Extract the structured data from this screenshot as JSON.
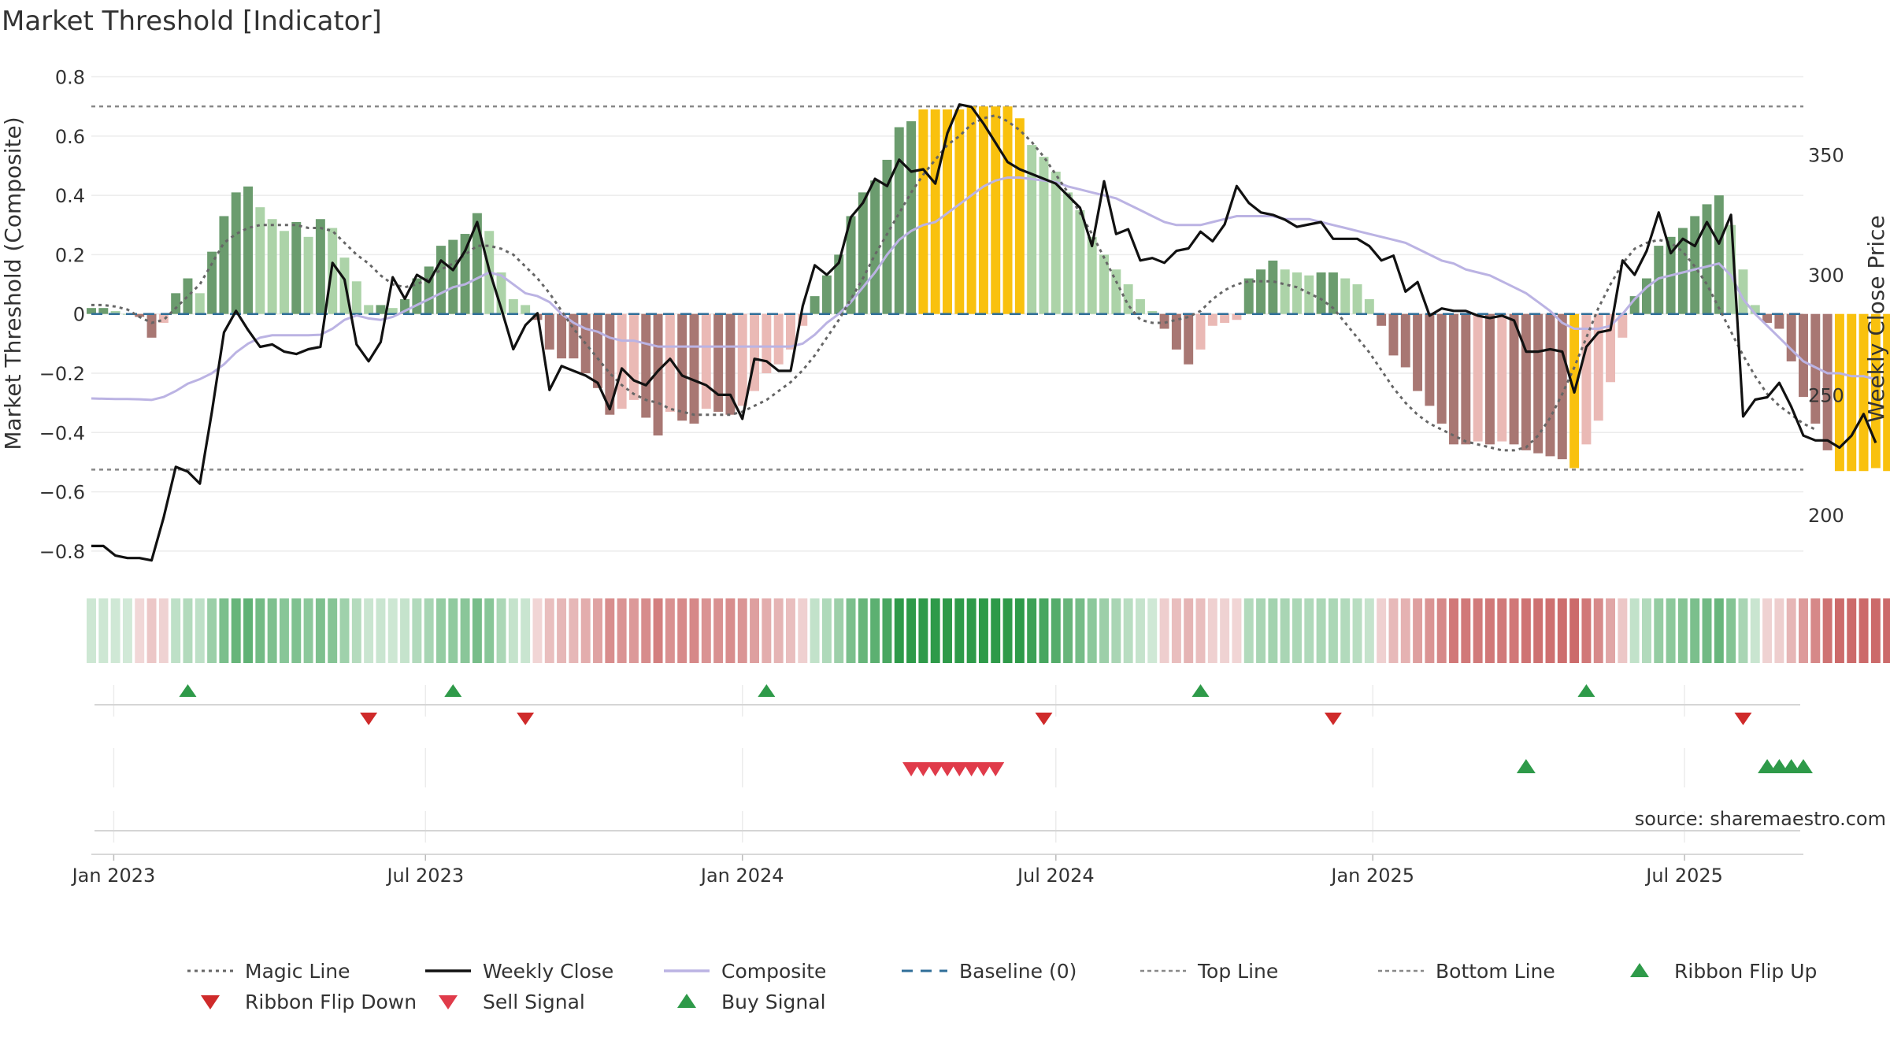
{
  "chart_data": {
    "type": "bar",
    "title": "Market Threshold [Indicator]",
    "ylabel": "Market Threshold (Composite)",
    "y2label": "Weekly Close Price",
    "ylim": [
      -0.88,
      0.82
    ],
    "y2lim": [
      175,
      385
    ],
    "y_ticks": [
      0.8,
      0.6,
      0.4,
      0.2,
      0,
      -0.2,
      -0.4,
      -0.6,
      -0.8
    ],
    "y_tick_labels": [
      "0.8",
      "0.6",
      "0.4",
      "0.2",
      "0",
      "−0.2",
      "−0.4",
      "−0.6",
      "−0.8"
    ],
    "y2_ticks": [
      350,
      300,
      250,
      200
    ],
    "y2_tick_labels": [
      "350",
      "300",
      "250",
      "200"
    ],
    "x_range": [
      "2022-12-19",
      "2025-09-08"
    ],
    "x_ticks": [
      "2023-01-01",
      "2023-07-01",
      "2024-01-01",
      "2024-07-01",
      "2025-01-01",
      "2025-07-01"
    ],
    "x_tick_labels": [
      "Jan 2023",
      "Jul 2023",
      "Jan 2024",
      "Jul 2024",
      "Jan 2025",
      "Jul 2025"
    ],
    "x_start": "2022-12-19",
    "x_step_days": 7,
    "top_line": 0.7,
    "bottom_line": -0.525,
    "baseline": 0,
    "composite_bars": [
      0.02,
      0.02,
      0.01,
      0,
      -0.01,
      -0.08,
      -0.03,
      0.07,
      0.12,
      0.07,
      0.21,
      0.33,
      0.41,
      0.43,
      0.36,
      0.32,
      0.28,
      0.31,
      0.26,
      0.32,
      0.29,
      0.19,
      0.11,
      0.03,
      0.03,
      0.02,
      0.05,
      0.12,
      0.16,
      0.23,
      0.25,
      0.27,
      0.34,
      0.28,
      0.14,
      0.05,
      0.03,
      -0.02,
      -0.12,
      -0.15,
      -0.15,
      -0.2,
      -0.25,
      -0.34,
      -0.32,
      -0.29,
      -0.35,
      -0.41,
      -0.33,
      -0.36,
      -0.37,
      -0.32,
      -0.33,
      -0.34,
      -0.31,
      -0.26,
      -0.2,
      -0.17,
      -0.12,
      -0.04,
      0.06,
      0.13,
      0.2,
      0.33,
      0.41,
      0.45,
      0.52,
      0.63,
      0.65,
      0.69,
      0.69,
      0.69,
      0.69,
      0.7,
      0.7,
      0.7,
      0.7,
      0.66,
      0.57,
      0.53,
      0.48,
      0.41,
      0.35,
      0.26,
      0.2,
      0.15,
      0.1,
      0.05,
      0.01,
      -0.05,
      -0.12,
      -0.17,
      -0.12,
      -0.04,
      -0.03,
      -0.02,
      0.12,
      0.15,
      0.18,
      0.15,
      0.14,
      0.13,
      0.14,
      0.14,
      0.12,
      0.1,
      0.05,
      -0.04,
      -0.14,
      -0.18,
      -0.26,
      -0.31,
      -0.37,
      -0.44,
      -0.44,
      -0.43,
      -0.44,
      -0.43,
      -0.44,
      -0.46,
      -0.47,
      -0.48,
      -0.49,
      -0.52,
      -0.44,
      -0.36,
      -0.23,
      -0.08,
      0.06,
      0.12,
      0.23,
      0.26,
      0.29,
      0.33,
      0.37,
      0.4,
      0.3,
      0.15,
      0.03,
      -0.03,
      -0.05,
      -0.16,
      -0.28,
      -0.37,
      -0.46,
      -0.53,
      -0.53,
      -0.53,
      -0.52,
      -0.53
    ],
    "composite_line": [
      -0.285,
      -0.286,
      -0.287,
      -0.287,
      -0.288,
      -0.29,
      -0.28,
      -0.26,
      -0.235,
      -0.22,
      -0.2,
      -0.17,
      -0.13,
      -0.1,
      -0.08,
      -0.072,
      -0.072,
      -0.072,
      -0.072,
      -0.07,
      -0.05,
      -0.02,
      -0.005,
      -0.015,
      -0.02,
      -0.01,
      0.01,
      0.03,
      0.05,
      0.07,
      0.09,
      0.1,
      0.12,
      0.14,
      0.13,
      0.1,
      0.07,
      0.06,
      0.04,
      0.0,
      -0.03,
      -0.05,
      -0.06,
      -0.08,
      -0.09,
      -0.09,
      -0.1,
      -0.11,
      -0.11,
      -0.11,
      -0.11,
      -0.11,
      -0.11,
      -0.11,
      -0.11,
      -0.11,
      -0.11,
      -0.11,
      -0.11,
      -0.1,
      -0.07,
      -0.03,
      0.0,
      0.04,
      0.09,
      0.14,
      0.2,
      0.25,
      0.28,
      0.3,
      0.31,
      0.34,
      0.37,
      0.4,
      0.43,
      0.45,
      0.46,
      0.46,
      0.455,
      0.45,
      0.445,
      0.43,
      0.42,
      0.41,
      0.4,
      0.39,
      0.37,
      0.35,
      0.33,
      0.31,
      0.3,
      0.3,
      0.3,
      0.31,
      0.32,
      0.33,
      0.33,
      0.33,
      0.33,
      0.32,
      0.32,
      0.32,
      0.31,
      0.3,
      0.29,
      0.28,
      0.27,
      0.26,
      0.25,
      0.24,
      0.22,
      0.2,
      0.18,
      0.17,
      0.15,
      0.14,
      0.13,
      0.11,
      0.09,
      0.07,
      0.04,
      0.01,
      -0.03,
      -0.05,
      -0.05,
      -0.05,
      -0.04,
      0.0,
      0.05,
      0.09,
      0.12,
      0.13,
      0.14,
      0.15,
      0.16,
      0.17,
      0.13,
      0.05,
      0.0,
      -0.04,
      -0.08,
      -0.12,
      -0.16,
      -0.18,
      -0.2,
      -0.2,
      -0.21,
      -0.21,
      -0.22
    ],
    "magic_line": [
      0.03,
      0.03,
      0.025,
      0.015,
      -0.01,
      -0.03,
      -0.02,
      0.02,
      0.06,
      0.1,
      0.17,
      0.24,
      0.27,
      0.29,
      0.3,
      0.3,
      0.3,
      0.3,
      0.29,
      0.29,
      0.28,
      0.24,
      0.2,
      0.17,
      0.13,
      0.1,
      0.09,
      0.1,
      0.12,
      0.15,
      0.17,
      0.2,
      0.23,
      0.23,
      0.22,
      0.2,
      0.16,
      0.12,
      0.07,
      0.01,
      -0.05,
      -0.1,
      -0.15,
      -0.2,
      -0.24,
      -0.27,
      -0.29,
      -0.3,
      -0.32,
      -0.33,
      -0.34,
      -0.34,
      -0.34,
      -0.34,
      -0.33,
      -0.31,
      -0.29,
      -0.26,
      -0.23,
      -0.19,
      -0.14,
      -0.08,
      -0.02,
      0.05,
      0.12,
      0.2,
      0.27,
      0.34,
      0.41,
      0.47,
      0.52,
      0.57,
      0.6,
      0.64,
      0.66,
      0.67,
      0.65,
      0.62,
      0.58,
      0.53,
      0.47,
      0.41,
      0.34,
      0.27,
      0.19,
      0.11,
      0.03,
      -0.02,
      -0.03,
      -0.03,
      -0.02,
      -0.01,
      0.01,
      0.05,
      0.08,
      0.1,
      0.11,
      0.11,
      0.11,
      0.1,
      0.09,
      0.07,
      0.05,
      0.02,
      -0.03,
      -0.08,
      -0.13,
      -0.19,
      -0.25,
      -0.3,
      -0.34,
      -0.37,
      -0.39,
      -0.41,
      -0.43,
      -0.44,
      -0.45,
      -0.46,
      -0.46,
      -0.45,
      -0.41,
      -0.35,
      -0.27,
      -0.18,
      -0.08,
      0.02,
      0.1,
      0.17,
      0.22,
      0.24,
      0.25,
      0.24,
      0.21,
      0.16,
      0.1,
      0.02,
      -0.06,
      -0.14,
      -0.21,
      -0.27,
      -0.31,
      -0.34,
      -0.37,
      -0.39
    ],
    "weekly_close": [
      187,
      187,
      183,
      182,
      182,
      181,
      199,
      220,
      218,
      213,
      243,
      276,
      285,
      277,
      270,
      271,
      268,
      267,
      269,
      270,
      305,
      298,
      271,
      264,
      272,
      299,
      290,
      300,
      297,
      306,
      302,
      310,
      322,
      302,
      286,
      269,
      279,
      284,
      252,
      262,
      260,
      258,
      255,
      244,
      261,
      256,
      254,
      260,
      265,
      258,
      256,
      254,
      250,
      250,
      240,
      265,
      264,
      260,
      260,
      287,
      304,
      300,
      305,
      324,
      330,
      340,
      337,
      348,
      343,
      344,
      338,
      359,
      371,
      370,
      363,
      355,
      347,
      344,
      342,
      340,
      338,
      333,
      328,
      312,
      339,
      317,
      319,
      306,
      307,
      305,
      310,
      311,
      318,
      314,
      321,
      337,
      330,
      326,
      325,
      323,
      320,
      321,
      322,
      315,
      315,
      315,
      312,
      306,
      308,
      293,
      297,
      283,
      286,
      285,
      285,
      283,
      282,
      283,
      281,
      268,
      268,
      269,
      268,
      251,
      270,
      276,
      277,
      306,
      300,
      310,
      326,
      309,
      315,
      312,
      322,
      313,
      325,
      241,
      248,
      249,
      255,
      245,
      233,
      231,
      231,
      228,
      233,
      242,
      230
    ],
    "ribbon_flip_up": [
      "2023-02-13",
      "2023-07-17",
      "2024-01-15",
      "2024-09-23",
      "2025-05-05"
    ],
    "ribbon_flip_down": [
      "2023-05-29",
      "2023-08-28",
      "2024-06-24",
      "2024-12-09",
      "2025-08-04"
    ],
    "sell_signals": [
      "2024-04-08",
      "2024-04-15",
      "2024-04-22",
      "2024-04-29",
      "2024-05-06",
      "2024-05-13",
      "2024-05-20",
      "2024-05-27"
    ],
    "buy_signals": [
      "2025-03-31",
      "2025-08-18",
      "2025-08-25",
      "2025-09-01",
      "2025-09-08"
    ]
  },
  "colors": {
    "bar_dark_green": "#6b9c6e",
    "bar_light_green": "#acd3a8",
    "bar_dark_red": "#a87773",
    "bar_light_red": "#eab9b5",
    "bar_gold": "#f9c10e",
    "weekly_close": "#111111",
    "composite": "#bbb3e3",
    "magic": "#666666",
    "baseline": "#2f6e98",
    "threshold": "#888888",
    "flip_up": "#2e9a49",
    "flip_down": "#cf2a2a",
    "sell": "#e03b4a",
    "buy": "#2e9a49"
  },
  "legend": [
    {
      "label": "Magic Line",
      "marker": "dotted-line"
    },
    {
      "label": "Weekly Close",
      "marker": "solid-line"
    },
    {
      "label": "Composite",
      "marker": "composite-line"
    },
    {
      "label": "Baseline (0)",
      "marker": "dashed-line"
    },
    {
      "label": "Top Line",
      "marker": "thin-dotted-line"
    },
    {
      "label": "Bottom Line",
      "marker": "thin-dotted-line"
    },
    {
      "label": "Ribbon Flip Up",
      "marker": "up-triangle-green"
    },
    {
      "label": "Ribbon Flip Down",
      "marker": "down-triangle-red"
    },
    {
      "label": "Sell Signal",
      "marker": "down-triangle-pink"
    },
    {
      "label": "Buy Signal",
      "marker": "up-triangle-green"
    }
  ],
  "source": "source: sharemaestro.com"
}
